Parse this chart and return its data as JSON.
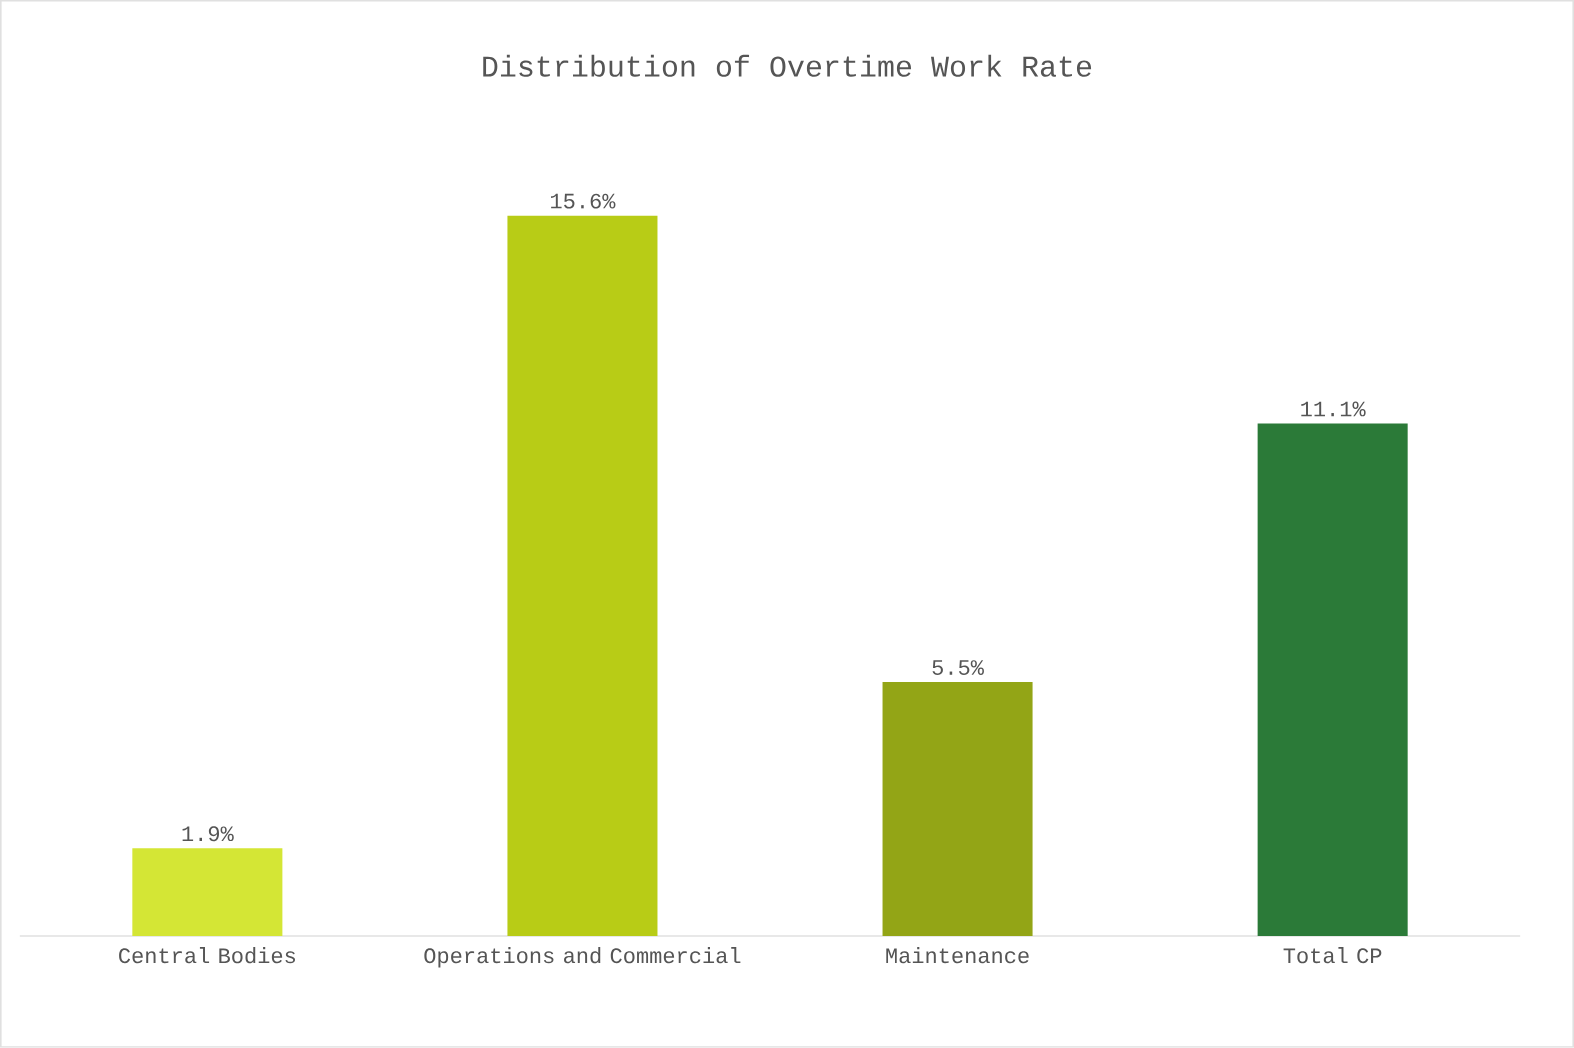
{
  "chart_data": {
    "type": "bar",
    "title": "Distribution of Overtime Work Rate",
    "categories": [
      "Central Bodies",
      "Operations and Commercial",
      "Maintenance",
      "Total CP"
    ],
    "values": [
      1.9,
      15.6,
      5.5,
      11.1
    ],
    "value_labels": [
      "1.9%",
      "15.6%",
      "5.5%",
      "11.1%"
    ],
    "colors": [
      "#d4e635",
      "#b8cc16",
      "#93a516",
      "#2b7a38"
    ]
  }
}
